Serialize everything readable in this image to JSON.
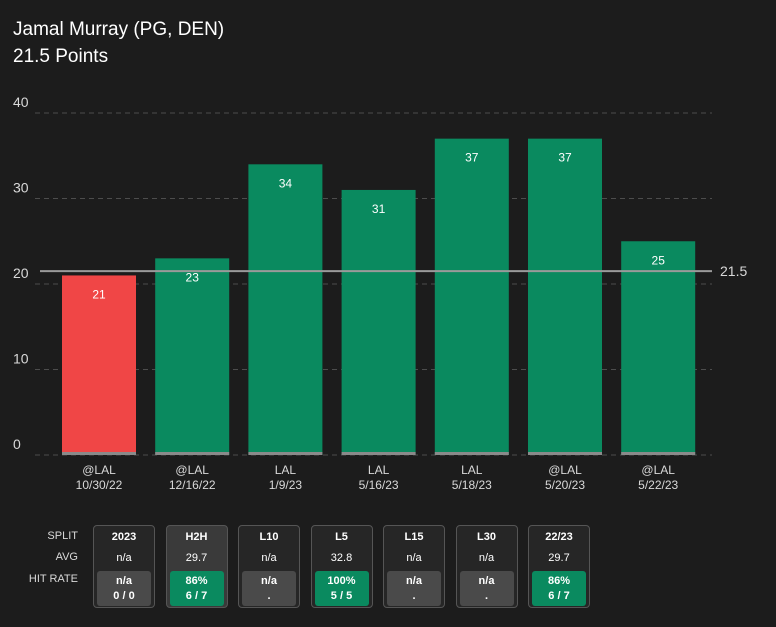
{
  "header": {
    "title": "Jamal Murray (PG, DEN)",
    "subtitle": "21.5 Points"
  },
  "colors": {
    "over": "#0a8a5f",
    "under": "#f04646",
    "line": "#9a9a9a",
    "grid": "#4d4d4d"
  },
  "chart_data": {
    "type": "bar",
    "title": "Jamal Murray (PG, DEN)",
    "subtitle": "21.5 Points",
    "categories": [
      [
        "@LAL",
        "10/30/22"
      ],
      [
        "@LAL",
        "12/16/22"
      ],
      [
        "LAL",
        "1/9/23"
      ],
      [
        "LAL",
        "5/16/23"
      ],
      [
        "LAL",
        "5/18/23"
      ],
      [
        "@LAL",
        "5/20/23"
      ],
      [
        "@LAL",
        "5/22/23"
      ]
    ],
    "values": [
      21,
      23,
      34,
      31,
      37,
      37,
      25
    ],
    "ylim": [
      0,
      40
    ],
    "yticks": [
      0,
      10,
      20,
      30,
      40
    ],
    "reference_line": {
      "value": 21.5,
      "label": "21.5"
    },
    "grid": true
  },
  "splits": {
    "row_labels": [
      "SPLIT",
      "AVG",
      "HIT RATE"
    ],
    "items": [
      {
        "label": "2023",
        "avg": "n/a",
        "hit_pct": "n/a",
        "hit_count": "0 / 0",
        "status": "none",
        "active": false
      },
      {
        "label": "H2H",
        "avg": "29.7",
        "hit_pct": "86%",
        "hit_count": "6 / 7",
        "status": "good",
        "active": true
      },
      {
        "label": "L10",
        "avg": "n/a",
        "hit_pct": "n/a",
        "hit_count": ".",
        "status": "none",
        "active": false
      },
      {
        "label": "L5",
        "avg": "32.8",
        "hit_pct": "100%",
        "hit_count": "5 / 5",
        "status": "good",
        "active": false
      },
      {
        "label": "L15",
        "avg": "n/a",
        "hit_pct": "n/a",
        "hit_count": ".",
        "status": "none",
        "active": false
      },
      {
        "label": "L30",
        "avg": "n/a",
        "hit_pct": "n/a",
        "hit_count": ".",
        "status": "none",
        "active": false
      },
      {
        "label": "22/23",
        "avg": "29.7",
        "hit_pct": "86%",
        "hit_count": "6 / 7",
        "status": "good",
        "active": false
      }
    ]
  }
}
